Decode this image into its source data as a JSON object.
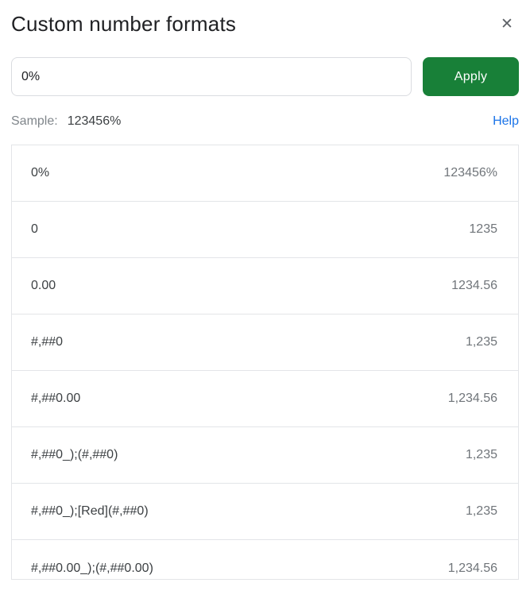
{
  "dialog": {
    "title": "Custom number formats",
    "close_icon_glyph": "✕"
  },
  "format_input": {
    "value": "0%"
  },
  "apply_button": {
    "label": "Apply"
  },
  "sample": {
    "label": "Sample:",
    "value": "123456%"
  },
  "help_link": {
    "label": "Help"
  },
  "colors": {
    "apply_green": "#188038",
    "link_blue": "#1a73e8",
    "title_text": "#202124",
    "format_code_text": "#3c4043",
    "format_preview_text": "#70757a",
    "border_gray": "#e3e5e8"
  },
  "format_list": {
    "items": [
      {
        "format": "0%",
        "preview": "123456%"
      },
      {
        "format": "0",
        "preview": "1235"
      },
      {
        "format": "0.00",
        "preview": "1234.56"
      },
      {
        "format": "#,##0",
        "preview": "1,235"
      },
      {
        "format": "#,##0.00",
        "preview": "1,234.56"
      },
      {
        "format": "#,##0_);(#,##0)",
        "preview": "1,235"
      },
      {
        "format": "#,##0_);[Red](#,##0)",
        "preview": "1,235"
      },
      {
        "format": "#,##0.00_);(#,##0.00)",
        "preview": "1,234.56"
      }
    ]
  }
}
